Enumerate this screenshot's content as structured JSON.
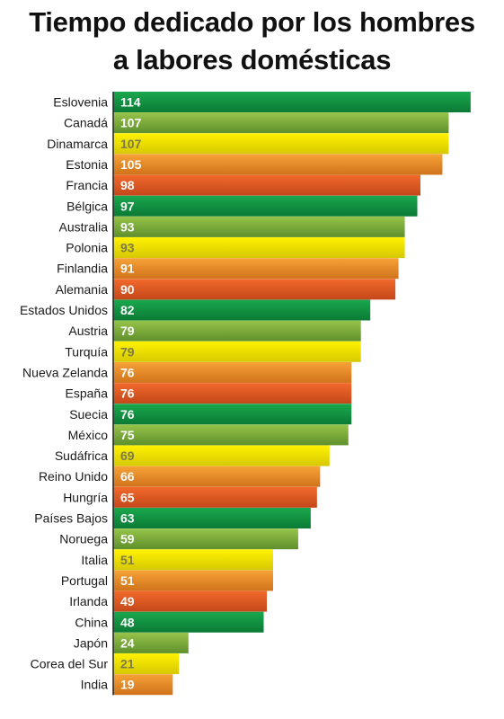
{
  "chart_data": {
    "type": "bar",
    "orientation": "horizontal",
    "title": [
      "Tiempo dedicado por los hombres",
      "a labores domésticas"
    ],
    "categories": [
      "Eslovenia",
      "Canadá",
      "Dinamarca",
      "Estonia",
      "Francia",
      "Bélgica",
      "Australia",
      "Polonia",
      "Finlandia",
      "Alemania",
      "Estados Unidos",
      "Austria",
      "Turquía",
      "Nueva Zelanda",
      "España",
      "Suecia",
      "México",
      "Sudáfrica",
      "Reino Unido",
      "Hungría",
      "Países Bajos",
      "Noruega",
      "Italia",
      "Portugal",
      "Irlanda",
      "China",
      "Japón",
      "Corea del Sur",
      "India"
    ],
    "values": [
      114,
      107,
      107,
      105,
      98,
      97,
      93,
      93,
      91,
      90,
      82,
      79,
      79,
      76,
      76,
      76,
      75,
      69,
      66,
      65,
      63,
      59,
      51,
      51,
      49,
      48,
      24,
      21,
      19
    ],
    "data_labels": true,
    "grid": false,
    "legend": "none",
    "color_cycle": [
      {
        "name": "green",
        "light": "#1aa84e",
        "dark": "#0b7a35"
      },
      {
        "name": "olive-green",
        "light": "#96c44a",
        "dark": "#5f8f2c"
      },
      {
        "name": "yellow",
        "light": "#fff200",
        "dark": "#d6c800"
      },
      {
        "name": "orange",
        "light": "#f7a238",
        "dark": "#d0721b"
      },
      {
        "name": "red-orange",
        "light": "#f26a2c",
        "dark": "#c4471a"
      }
    ],
    "yellow_label_color": "#7a7a4a"
  }
}
